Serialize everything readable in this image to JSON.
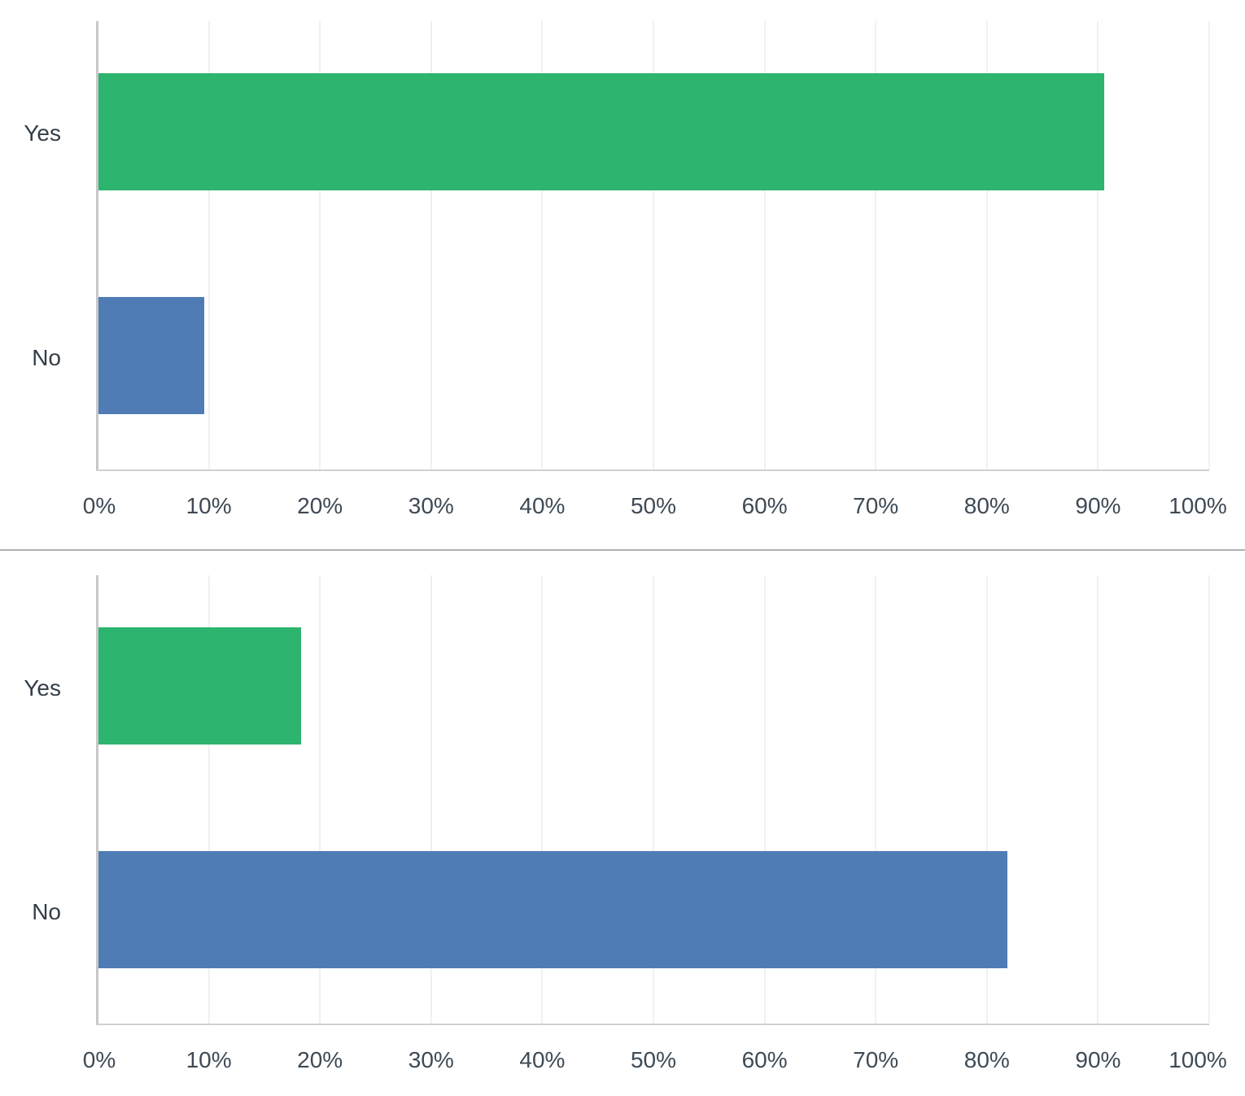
{
  "colors": {
    "yes": "#2db46e",
    "no": "#4f7cb5",
    "grid": "#eef1f2",
    "axis": "#c8c8c8"
  },
  "x_ticks": [
    "0%",
    "10%",
    "20%",
    "30%",
    "40%",
    "50%",
    "60%",
    "70%",
    "80%",
    "90%",
    "100%"
  ],
  "charts": [
    {
      "categories": [
        "Yes",
        "No"
      ],
      "values": [
        90.5,
        9.5
      ]
    },
    {
      "categories": [
        "Yes",
        "No"
      ],
      "values": [
        18.2,
        81.8
      ]
    }
  ],
  "chart_data": [
    {
      "type": "bar",
      "orientation": "horizontal",
      "title": "",
      "categories": [
        "Yes",
        "No"
      ],
      "values": [
        90.5,
        9.5
      ],
      "colors": [
        "#2db46e",
        "#4f7cb5"
      ],
      "xlabel": "",
      "ylabel": "",
      "xlim": [
        0,
        100
      ],
      "x_tick_labels": [
        "0%",
        "10%",
        "20%",
        "30%",
        "40%",
        "50%",
        "60%",
        "70%",
        "80%",
        "90%",
        "100%"
      ],
      "grid": true,
      "legend": "none"
    },
    {
      "type": "bar",
      "orientation": "horizontal",
      "title": "",
      "categories": [
        "Yes",
        "No"
      ],
      "values": [
        18.2,
        81.8
      ],
      "colors": [
        "#2db46e",
        "#4f7cb5"
      ],
      "xlabel": "",
      "ylabel": "",
      "xlim": [
        0,
        100
      ],
      "x_tick_labels": [
        "0%",
        "10%",
        "20%",
        "30%",
        "40%",
        "50%",
        "60%",
        "70%",
        "80%",
        "90%",
        "100%"
      ],
      "grid": true,
      "legend": "none"
    }
  ]
}
